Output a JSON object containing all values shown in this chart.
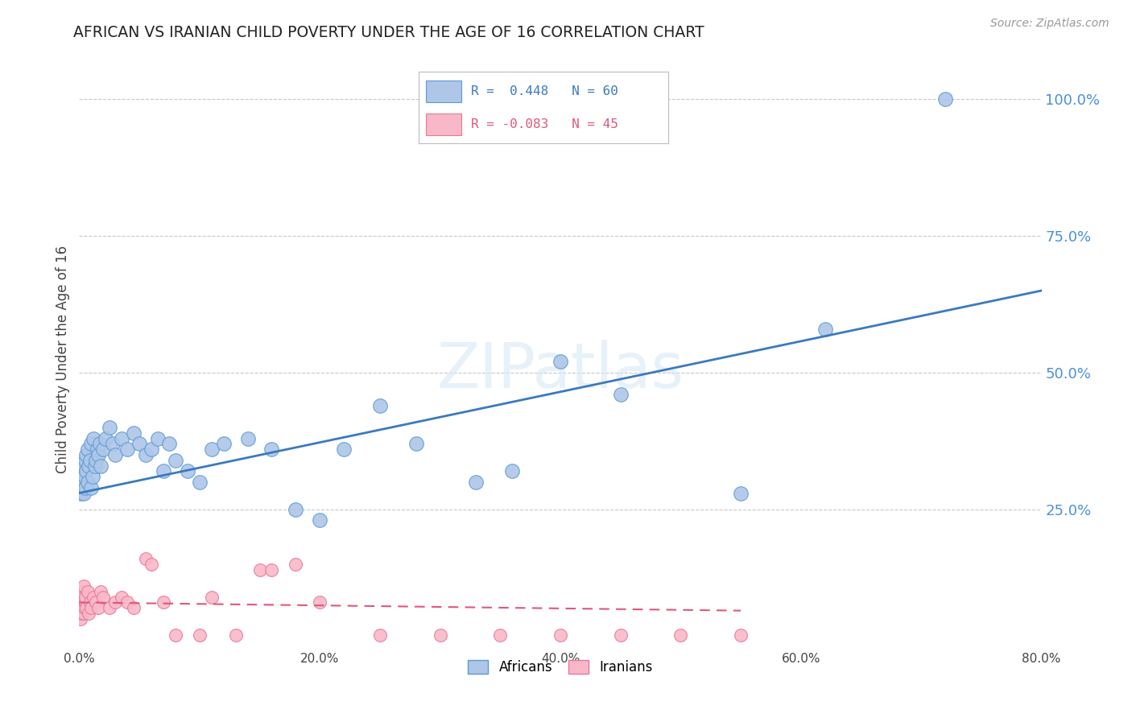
{
  "title": "AFRICAN VS IRANIAN CHILD POVERTY UNDER THE AGE OF 16 CORRELATION CHART",
  "source": "Source: ZipAtlas.com",
  "xlabel_vals": [
    0.0,
    20.0,
    40.0,
    60.0,
    80.0
  ],
  "ylabel_vals": [
    100.0,
    75.0,
    50.0,
    25.0
  ],
  "xlim": [
    0,
    80
  ],
  "ylim": [
    0,
    105
  ],
  "african_R": 0.448,
  "african_N": 60,
  "iranian_R": -0.083,
  "iranian_N": 45,
  "african_color": "#aec6e8",
  "african_edge_color": "#5b9bd5",
  "african_line_color": "#3a7abf",
  "iranian_color": "#f9b8c8",
  "iranian_edge_color": "#e87898",
  "iranian_line_color": "#e05878",
  "watermark": "ZIPatlas",
  "background_color": "#ffffff",
  "grid_color": "#c8c8c8",
  "right_tick_color": "#4a90d9",
  "title_color": "#222222",
  "source_color": "#999999",
  "african_line_start_y": 28.0,
  "african_line_end_y": 65.0,
  "iranian_line_start_y": 8.0,
  "iranian_line_end_y": 6.5,
  "african_x": [
    0.1,
    0.15,
    0.2,
    0.25,
    0.3,
    0.3,
    0.35,
    0.4,
    0.45,
    0.5,
    0.5,
    0.6,
    0.6,
    0.7,
    0.7,
    0.8,
    0.9,
    1.0,
    1.0,
    1.1,
    1.2,
    1.3,
    1.4,
    1.5,
    1.6,
    1.7,
    1.8,
    2.0,
    2.2,
    2.5,
    2.8,
    3.0,
    3.5,
    4.0,
    4.5,
    5.0,
    5.5,
    6.0,
    6.5,
    7.0,
    7.5,
    8.0,
    9.0,
    10.0,
    11.0,
    12.0,
    14.0,
    16.0,
    18.0,
    20.0,
    22.0,
    25.0,
    28.0,
    33.0,
    36.0,
    40.0,
    45.0,
    55.0,
    62.0,
    72.0
  ],
  "african_y": [
    28,
    30,
    29,
    31,
    30,
    32,
    28,
    33,
    31,
    29,
    34,
    32,
    35,
    30,
    36,
    33,
    34,
    29,
    37,
    31,
    38,
    33,
    34,
    36,
    35,
    37,
    33,
    36,
    38,
    40,
    37,
    35,
    38,
    36,
    39,
    37,
    35,
    36,
    38,
    32,
    37,
    34,
    32,
    30,
    36,
    37,
    38,
    36,
    25,
    23,
    36,
    44,
    37,
    30,
    32,
    52,
    46,
    28,
    58,
    100
  ],
  "iranian_x": [
    0.05,
    0.1,
    0.15,
    0.2,
    0.25,
    0.3,
    0.3,
    0.35,
    0.4,
    0.45,
    0.5,
    0.5,
    0.6,
    0.7,
    0.8,
    0.9,
    1.0,
    1.2,
    1.4,
    1.6,
    1.8,
    2.0,
    2.5,
    3.0,
    3.5,
    4.0,
    4.5,
    5.5,
    6.0,
    7.0,
    8.0,
    10.0,
    11.0,
    13.0,
    15.0,
    16.0,
    18.0,
    20.0,
    25.0,
    30.0,
    35.0,
    40.0,
    45.0,
    50.0,
    55.0
  ],
  "iranian_y": [
    7,
    5,
    8,
    6,
    10,
    7,
    9,
    6,
    11,
    7,
    8,
    9,
    7,
    10,
    6,
    8,
    7,
    9,
    8,
    7,
    10,
    9,
    7,
    8,
    9,
    8,
    7,
    16,
    15,
    8,
    2,
    2,
    9,
    2,
    14,
    14,
    15,
    8,
    2,
    2,
    2,
    2,
    2,
    2,
    2
  ]
}
